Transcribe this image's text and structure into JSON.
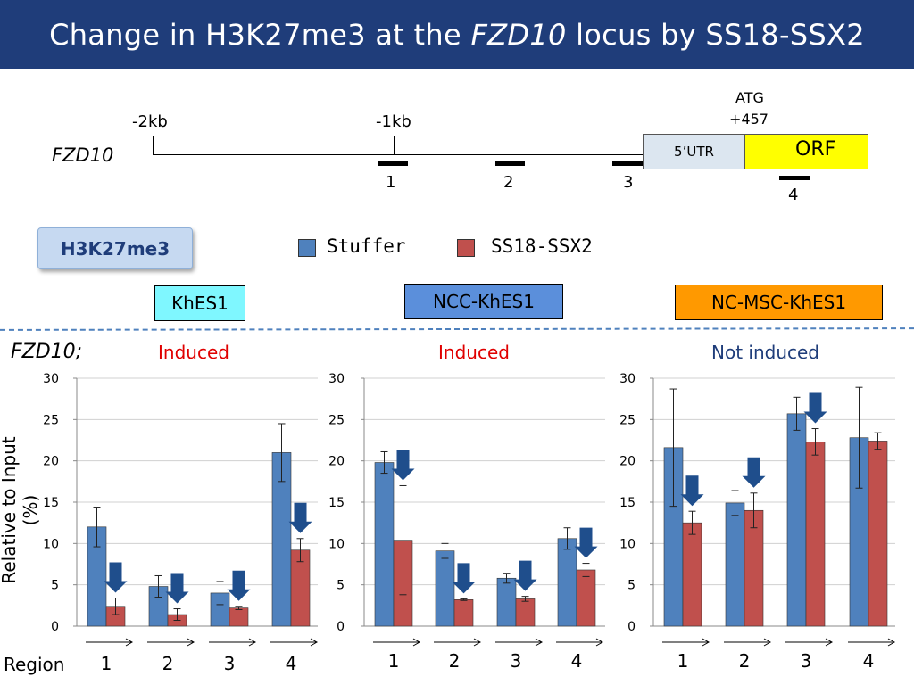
{
  "title": {
    "pre": "Change in H3K27me3 at the ",
    "gene": "FZD10",
    "post": " locus by SS18-SSX2"
  },
  "locus": {
    "gene": "FZD10",
    "m2kb": "-2kb",
    "m1kb": "-1kb",
    "atg": "ATG",
    "atg_pos": "+457",
    "utr": "5’UTR",
    "orf": "ORF",
    "regions": [
      "1",
      "2",
      "3",
      "4"
    ]
  },
  "mark_label": "H3K27me3",
  "legend": {
    "stuffer": "Stuffer",
    "ss18": "SS18-SSX2",
    "stuffer_color": "#4f81bd",
    "ss18_color": "#c0504d"
  },
  "cells": {
    "khes1": {
      "label": "KhES1",
      "color": "#7ff7ff"
    },
    "ncc": {
      "label": "NCC-KhES1",
      "color": "#5b8fdb"
    },
    "ncmsc": {
      "label": "NC-MSC-KhES1",
      "color": "#ff9900"
    }
  },
  "row_label": "FZD10;",
  "status": {
    "p1": "Induced",
    "p2": "Induced",
    "p3": "Not induced",
    "induced_color": "#e00000",
    "not_color": "#1f3d7a"
  },
  "ylabel": "Relative to Input (%)",
  "region_label": "Region",
  "arrow_color": "#1f4e8c",
  "chart_data": [
    {
      "type": "bar",
      "title": "KhES1",
      "categories": [
        "1",
        "2",
        "3",
        "4"
      ],
      "ylim": [
        0,
        30
      ],
      "yticks": [
        0,
        5,
        10,
        15,
        20,
        25,
        30
      ],
      "series": [
        {
          "name": "Stuffer",
          "values": [
            12.0,
            4.8,
            4.0,
            21.0
          ],
          "errors": [
            2.4,
            1.3,
            1.4,
            3.5
          ]
        },
        {
          "name": "SS18-SSX2",
          "values": [
            2.4,
            1.4,
            2.2,
            9.2
          ],
          "errors": [
            1.0,
            0.7,
            0.2,
            1.4
          ]
        }
      ],
      "arrows": [
        0,
        1,
        2,
        3
      ]
    },
    {
      "type": "bar",
      "title": "NCC-KhES1",
      "categories": [
        "1",
        "2",
        "3",
        "4"
      ],
      "ylim": [
        0,
        30
      ],
      "yticks": [
        0,
        5,
        10,
        15,
        20,
        25,
        30
      ],
      "series": [
        {
          "name": "Stuffer",
          "values": [
            19.8,
            9.1,
            5.8,
            10.6
          ],
          "errors": [
            1.3,
            0.9,
            0.6,
            1.3
          ]
        },
        {
          "name": "SS18-SSX2",
          "values": [
            10.4,
            3.2,
            3.3,
            6.8
          ],
          "errors": [
            6.6,
            0.1,
            0.3,
            0.8
          ]
        }
      ],
      "arrows": [
        0,
        1,
        2,
        3
      ]
    },
    {
      "type": "bar",
      "title": "NC-MSC-KhES1",
      "categories": [
        "1",
        "2",
        "3",
        "4"
      ],
      "ylim": [
        0,
        30
      ],
      "yticks": [
        0,
        5,
        10,
        15,
        20,
        25,
        30
      ],
      "series": [
        {
          "name": "Stuffer",
          "values": [
            21.6,
            14.9,
            25.7,
            22.8
          ],
          "errors": [
            7.1,
            1.5,
            2.0,
            6.1
          ]
        },
        {
          "name": "SS18-SSX2",
          "values": [
            12.5,
            14.0,
            22.3,
            22.4
          ],
          "errors": [
            1.4,
            2.1,
            1.6,
            1.0
          ]
        }
      ],
      "arrows": [
        0,
        1,
        2
      ]
    }
  ]
}
